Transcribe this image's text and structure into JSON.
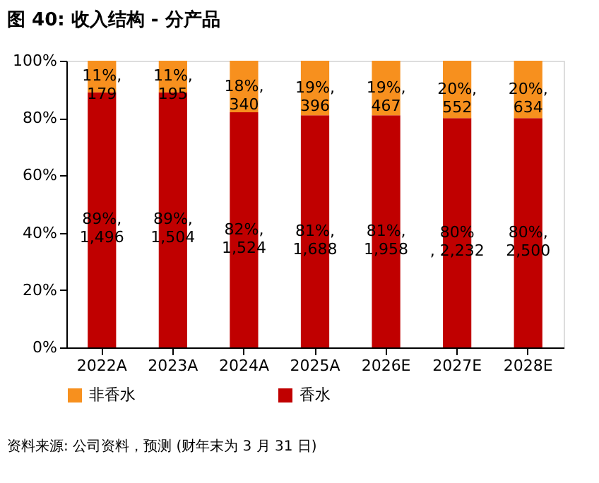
{
  "chart_data": {
    "type": "bar",
    "title": "图 40: 收入结构 - 分产品",
    "categories": [
      "2022A",
      "2023A",
      "2024A",
      "2025A",
      "2026E",
      "2027E",
      "2028E"
    ],
    "stacked": true,
    "series": [
      {
        "name": "香水",
        "color": "#c00000",
        "values": [
          89,
          89,
          82,
          81,
          81,
          80,
          80
        ],
        "value_labels": [
          "89%,\n1,496",
          "89%,\n1,504",
          "82%,\n1,524",
          "81%,\n1,688",
          "81%,\n1,958",
          "80%\n, 2,232",
          "80%,\n2,500"
        ]
      },
      {
        "name": "非香水",
        "color": "#f7901e",
        "values": [
          11,
          11,
          18,
          19,
          19,
          20,
          20
        ],
        "value_labels": [
          "11%,\n179",
          "11%,\n195",
          "18%,\n340",
          "19%,\n396",
          "19%,\n467",
          "20%,\n552",
          "20%,\n634"
        ]
      }
    ],
    "ylim": [
      0,
      100
    ],
    "yticks": [
      {
        "value": 0,
        "label": "0%"
      },
      {
        "value": 20,
        "label": "20%"
      },
      {
        "value": 40,
        "label": "40%"
      },
      {
        "value": 60,
        "label": "60%"
      },
      {
        "value": 80,
        "label": "80%"
      },
      {
        "value": 100,
        "label": "100%"
      }
    ],
    "legend": "bottom",
    "grid": false,
    "annotations": [
      "资料来源: 公司资料，预测 (财年末为 3 月 31 日)"
    ]
  }
}
